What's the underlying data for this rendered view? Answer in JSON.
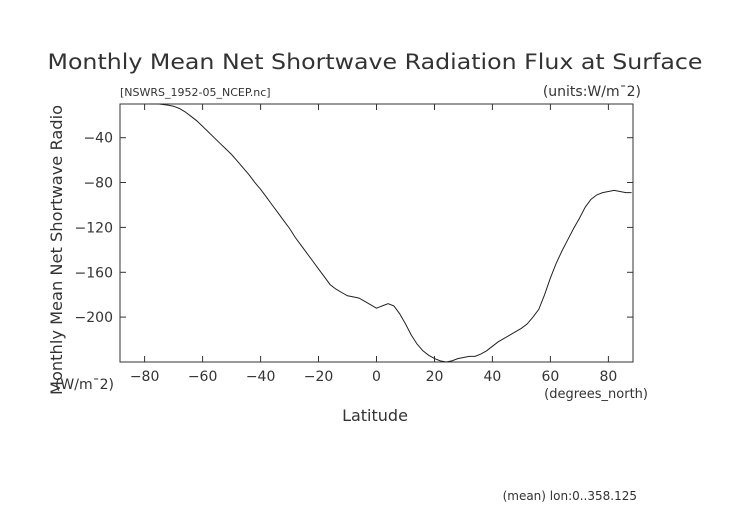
{
  "chart_data": {
    "type": "line",
    "title": "Monthly Mean Net Shortwave Radiation Flux at Surface",
    "source_file": "[NSWRS_1952-05_NCEP.nc]",
    "units_note": "(units:W/m¯2)",
    "ylabel": "Monthly Mean Net Shortwave Radio",
    "ylabel_units": "(W/m¯2)",
    "xlabel": "Latitude",
    "xlabel_units": "(degrees_north)",
    "footer": "(mean) lon:0..358.125",
    "xlim": [
      -88.5,
      88.5
    ],
    "ylim": [
      -240,
      -10
    ],
    "grid": false,
    "x_ticks": [
      -80,
      -60,
      -40,
      -20,
      0,
      20,
      40,
      60,
      80
    ],
    "x_tick_labels": [
      "−80",
      "−60",
      "−40",
      "−20",
      "0",
      "20",
      "40",
      "60",
      "80"
    ],
    "y_ticks": [
      -40,
      -80,
      -120,
      -160,
      -200
    ],
    "y_tick_labels": [
      "−40",
      "−80",
      "−120",
      "−160",
      "−200"
    ],
    "series": [
      {
        "x": [
          -78,
          -75,
          -72,
          -70,
          -68,
          -66,
          -64,
          -62,
          -60,
          -58,
          -56,
          -54,
          -52,
          -50,
          -48,
          -46,
          -44,
          -42,
          -40,
          -38,
          -36,
          -34,
          -32,
          -30,
          -28,
          -26,
          -24,
          -22,
          -20,
          -18,
          -16,
          -14,
          -12,
          -10,
          -8,
          -6,
          -4,
          -2,
          0,
          2,
          4,
          6,
          8,
          10,
          12,
          14,
          16,
          18,
          20,
          22,
          24,
          26,
          28,
          30,
          32,
          34,
          36,
          38,
          40,
          42,
          44,
          46,
          48,
          50,
          52,
          54,
          56,
          58,
          60,
          62,
          64,
          66,
          68,
          70,
          72,
          74,
          76,
          78,
          80,
          82,
          84,
          86,
          88
        ],
        "y": [
          -10,
          -10,
          -11,
          -12,
          -14,
          -17,
          -21,
          -25,
          -30,
          -35,
          -40,
          -45,
          -50,
          -55,
          -61,
          -67,
          -73,
          -80,
          -86,
          -93,
          -100,
          -107,
          -114,
          -121,
          -129,
          -136,
          -143,
          -150,
          -157,
          -164,
          -171,
          -175,
          -178,
          -181,
          -182,
          -183,
          -186,
          -189,
          -192,
          -190,
          -188,
          -190,
          -197,
          -206,
          -216,
          -224,
          -230,
          -234,
          -237,
          -239,
          -240,
          -239,
          -237,
          -236,
          -235,
          -235,
          -233,
          -230,
          -226,
          -222,
          -219,
          -216,
          -213,
          -210,
          -206,
          -200,
          -193,
          -180,
          -165,
          -152,
          -141,
          -131,
          -121,
          -112,
          -102,
          -95,
          -91,
          -89,
          -88,
          -87,
          -88,
          -89,
          -89
        ]
      }
    ]
  }
}
